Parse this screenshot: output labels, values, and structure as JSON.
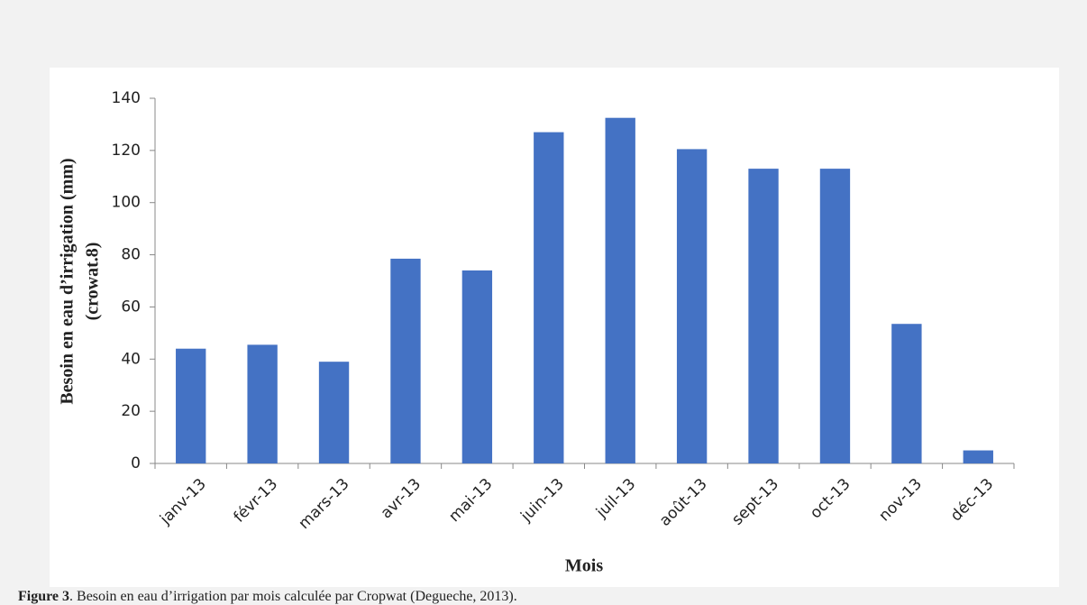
{
  "chart_data": {
    "type": "bar",
    "y_title": [
      "Besoin en eau d’irrigation  (mm)",
      "(crowat.8)"
    ],
    "x_title": "Mois",
    "categories": [
      "janv-13",
      "févr-13",
      "mars-13",
      "avr-13",
      "mai-13",
      "juin-13",
      "juil-13",
      "août-13",
      "sept-13",
      "oct-13",
      "nov-13",
      "déc-13"
    ],
    "values": [
      44,
      45.5,
      39,
      78.5,
      74,
      127,
      132.5,
      120.5,
      113,
      113,
      53.5,
      5
    ],
    "color": "#4472c4",
    "ylim": [
      0,
      140
    ],
    "yticks": [
      0,
      20,
      40,
      60,
      80,
      100,
      120,
      140
    ],
    "grid": false
  },
  "caption": {
    "label": "Figure 3",
    "text": ". Besoin en eau d’irrigation par mois calculée par Cropwat (Degueche, 2013)."
  }
}
